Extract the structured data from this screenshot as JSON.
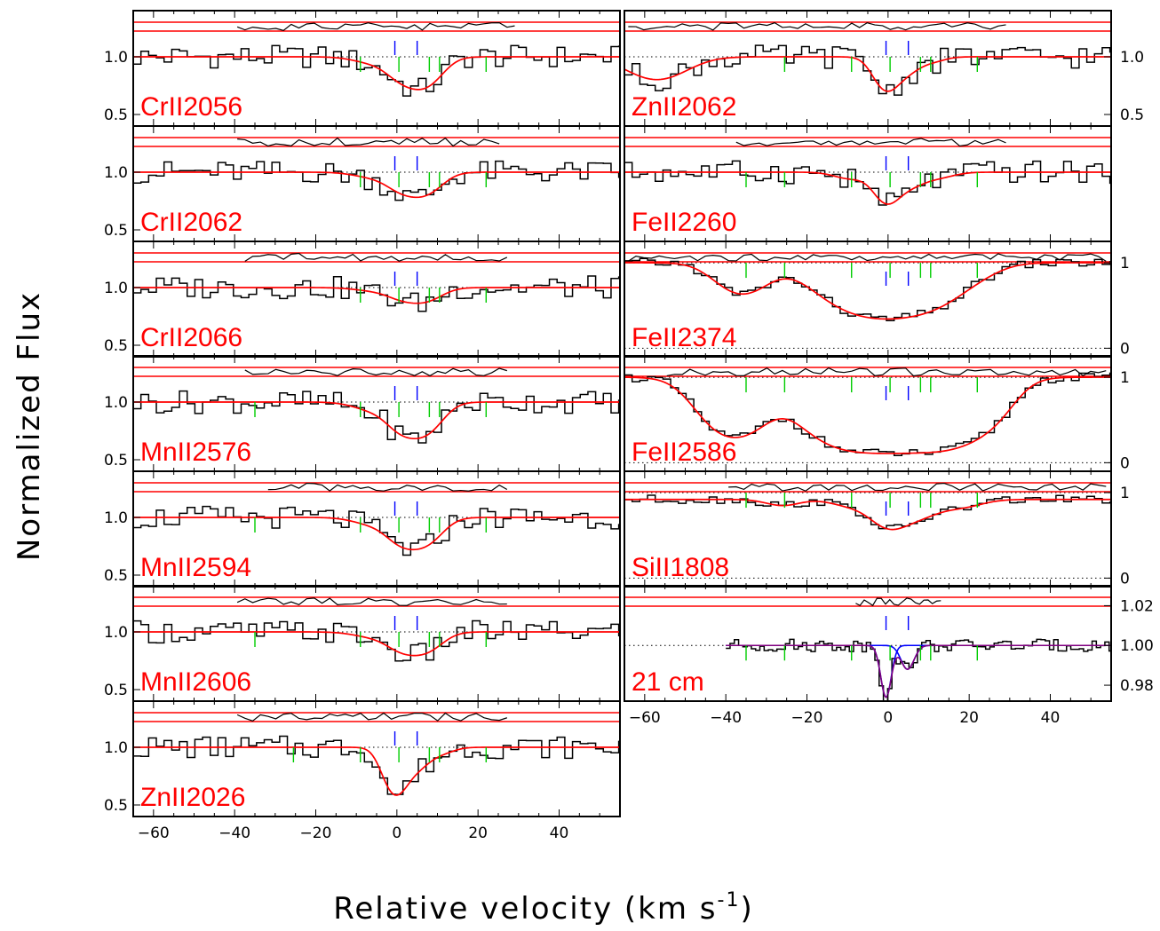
{
  "figure": {
    "xlabel": "Relative velocity (km s",
    "xlabel_sup": "-1",
    "xlabel_end": ")",
    "ylabel": "Normalized Flux"
  },
  "colors": {
    "data": "#000000",
    "model": "#ff0000",
    "component_blue": "#0000ff",
    "component_green": "#00cc00",
    "continuum_dotted": "#000000",
    "hi_components": "#0000ff",
    "hi_total": "#800080"
  },
  "chart_data": {
    "type": "line",
    "xlim": [
      -65,
      55
    ],
    "x_ticks": [
      -60,
      -40,
      -20,
      0,
      20,
      40
    ],
    "blue_ticks_velocity": [
      -0.5,
      5
    ],
    "green_ticks_velocity": [
      -35,
      -25.5,
      -9,
      0.5,
      8,
      10.5,
      22
    ],
    "panels": [
      {
        "label": "CrII2056",
        "ylim": [
          0.4,
          1.4
        ],
        "y_ticks": [
          0.5,
          1.0
        ],
        "y_tick_labels": [
          "0.5",
          "1.0"
        ],
        "green_ticks": [
          -9,
          0.5,
          8,
          10.5,
          22
        ],
        "model": {
          "continuum": 1.0,
          "components": [
            {
              "v": -5,
              "depth": 0.06,
              "sigma": 5
            },
            {
              "v": 1,
              "depth": 0.15,
              "sigma": 3.5
            },
            {
              "v": 7,
              "depth": 0.28,
              "sigma": 4
            }
          ]
        },
        "residual_range": [
          -40,
          30
        ]
      },
      {
        "label": "CrII2062",
        "ylim": [
          0.4,
          1.4
        ],
        "y_ticks": [
          0.5,
          1.0
        ],
        "y_tick_labels": [
          "0.5",
          "1.0"
        ],
        "green_ticks": [
          -9,
          0.5,
          8,
          10.5,
          22
        ],
        "model": {
          "continuum": 1.0,
          "components": [
            {
              "v": -5,
              "depth": 0.05,
              "sigma": 5
            },
            {
              "v": 1,
              "depth": 0.12,
              "sigma": 3.5
            },
            {
              "v": 7,
              "depth": 0.2,
              "sigma": 4
            }
          ]
        },
        "residual_range": [
          -40,
          26
        ]
      },
      {
        "label": "CrII2066",
        "ylim": [
          0.4,
          1.4
        ],
        "y_ticks": [
          0.5,
          1.0
        ],
        "y_tick_labels": [
          "0.5",
          "1.0"
        ],
        "green_ticks": [
          -9,
          0.5,
          8,
          10.5,
          22
        ],
        "model": {
          "continuum": 1.0,
          "components": [
            {
              "v": -5,
              "depth": 0.03,
              "sigma": 5
            },
            {
              "v": 1,
              "depth": 0.07,
              "sigma": 3.5
            },
            {
              "v": 7,
              "depth": 0.12,
              "sigma": 4
            }
          ]
        },
        "residual_range": [
          -38,
          28
        ]
      },
      {
        "label": "MnII2576",
        "ylim": [
          0.4,
          1.4
        ],
        "y_ticks": [
          0.5,
          1.0
        ],
        "y_tick_labels": [
          "0.5",
          "1.0"
        ],
        "green_ticks": [
          -35,
          -9,
          0.5,
          8,
          10.5,
          22
        ],
        "model": {
          "continuum": 1.0,
          "components": [
            {
              "v": -5,
              "depth": 0.08,
              "sigma": 5
            },
            {
              "v": 1,
              "depth": 0.2,
              "sigma": 3.5
            },
            {
              "v": 7,
              "depth": 0.3,
              "sigma": 4
            }
          ]
        },
        "residual_range": [
          -38,
          28
        ]
      },
      {
        "label": "MnII2594",
        "ylim": [
          0.4,
          1.4
        ],
        "y_ticks": [
          0.5,
          1.0
        ],
        "y_tick_labels": [
          "0.5",
          "1.0"
        ],
        "green_ticks": [
          -35,
          -9,
          0.5,
          8,
          10.5,
          22
        ],
        "model": {
          "continuum": 1.0,
          "components": [
            {
              "v": -5,
              "depth": 0.07,
              "sigma": 5
            },
            {
              "v": 1,
              "depth": 0.18,
              "sigma": 3.5
            },
            {
              "v": 7,
              "depth": 0.25,
              "sigma": 4
            }
          ]
        },
        "residual_range": [
          -32,
          28
        ]
      },
      {
        "label": "MnII2606",
        "ylim": [
          0.4,
          1.4
        ],
        "y_ticks": [
          0.5,
          1.0
        ],
        "y_tick_labels": [
          "0.5",
          "1.0"
        ],
        "green_ticks": [
          -35,
          -9,
          0.5,
          8,
          10.5,
          22
        ],
        "model": {
          "continuum": 1.0,
          "components": [
            {
              "v": -5,
              "depth": 0.05,
              "sigma": 5
            },
            {
              "v": 1,
              "depth": 0.12,
              "sigma": 3.5
            },
            {
              "v": 7,
              "depth": 0.18,
              "sigma": 4
            }
          ]
        },
        "residual_range": [
          -40,
          28
        ]
      },
      {
        "label": "ZnII2026",
        "ylim": [
          0.4,
          1.4
        ],
        "y_ticks": [
          0.5,
          1.0
        ],
        "y_tick_labels": [
          "0.5",
          "1.0"
        ],
        "green_ticks": [
          -25.5,
          -9,
          0.5,
          8,
          10.5,
          22
        ],
        "model": {
          "continuum": 1.0,
          "components": [
            {
              "v": -0.5,
              "depth": 0.5,
              "sigma": 2.8
            },
            {
              "v": 5,
              "depth": 0.18,
              "sigma": 3
            },
            {
              "v": 11,
              "depth": 0.05,
              "sigma": 3
            }
          ]
        },
        "residual_range": [
          -40,
          28
        ]
      },
      {
        "label": "ZnII2062",
        "ylim": [
          0.4,
          1.4
        ],
        "y_ticks": [
          0.5,
          1.0
        ],
        "y_tick_labels": [
          "0.5",
          "1.0"
        ],
        "green_ticks": [
          -25.5,
          -9,
          0.5,
          8,
          10.5,
          22
        ],
        "model": {
          "continuum": 1.0,
          "components": [
            {
              "v": -57,
              "depth": 0.22,
              "sigma": 7
            },
            {
              "v": -0.5,
              "depth": 0.33,
              "sigma": 3
            },
            {
              "v": 5,
              "depth": 0.12,
              "sigma": 3
            },
            {
              "v": 11,
              "depth": 0.04,
              "sigma": 3
            }
          ]
        },
        "residual_range": [
          -65,
          30
        ]
      },
      {
        "label": "FeII2260",
        "ylim": [
          0.4,
          1.4
        ],
        "y_ticks": [],
        "y_tick_labels": [],
        "green_ticks": [
          -35,
          -25.5,
          -9,
          0.5,
          8,
          10.5,
          22
        ],
        "model": {
          "continuum": 1.0,
          "components": [
            {
              "v": -9,
              "depth": 0.06,
              "sigma": 4
            },
            {
              "v": -0.5,
              "depth": 0.28,
              "sigma": 3
            },
            {
              "v": 5,
              "depth": 0.12,
              "sigma": 3.5
            },
            {
              "v": 12,
              "depth": 0.05,
              "sigma": 4
            }
          ]
        },
        "residual_range": [
          -38,
          30
        ]
      },
      {
        "label": "FeII2374",
        "ylim": [
          -0.1,
          1.25
        ],
        "y_ticks": [
          0,
          1
        ],
        "y_tick_labels": [
          "0",
          "1"
        ],
        "green_ticks": [
          -35,
          -25.5,
          -9,
          0.5,
          8,
          10.5,
          22
        ],
        "model": {
          "continuum": 1.0,
          "components": [
            {
              "v": -36,
              "depth": 0.45,
              "sigma": 6
            },
            {
              "v": -12,
              "depth": 0.4,
              "sigma": 8
            },
            {
              "v": 0,
              "depth": 0.85,
              "sigma": 9
            },
            {
              "v": 12,
              "depth": 0.4,
              "sigma": 7
            },
            {
              "v": 22,
              "depth": 0.1,
              "sigma": 6
            }
          ]
        },
        "residual_range": [
          -65,
          55
        ]
      },
      {
        "label": "FeII2586",
        "ylim": [
          -0.1,
          1.25
        ],
        "y_ticks": [
          0,
          1
        ],
        "y_tick_labels": [
          "0",
          "1"
        ],
        "green_ticks": [
          -35,
          -25.5,
          -9,
          0.5,
          8,
          10.5,
          22
        ],
        "model": {
          "continuum": 1.0,
          "components": [
            {
              "v": -38,
              "depth": 1.2,
              "sigma": 7
            },
            {
              "v": -12,
              "depth": 1.2,
              "sigma": 9
            },
            {
              "v": 2,
              "depth": 1.6,
              "sigma": 10
            },
            {
              "v": 16,
              "depth": 1.2,
              "sigma": 8
            },
            {
              "v": 26,
              "depth": 0.25,
              "sigma": 5
            }
          ]
        },
        "residual_range": [
          -55,
          55
        ]
      },
      {
        "label": "SiII1808",
        "ylim": [
          -0.1,
          1.25
        ],
        "y_ticks": [
          0,
          1
        ],
        "y_tick_labels": [
          "0",
          "1"
        ],
        "green_ticks": [
          -35,
          -25.5,
          -9,
          0.5,
          8,
          10.5,
          22
        ],
        "model": {
          "continuum": 0.92,
          "components": [
            {
              "v": -26,
              "depth": 0.08,
              "sigma": 4
            },
            {
              "v": -8,
              "depth": 0.1,
              "sigma": 5
            },
            {
              "v": 0,
              "depth": 0.35,
              "sigma": 4
            },
            {
              "v": 7,
              "depth": 0.25,
              "sigma": 5
            },
            {
              "v": 18,
              "depth": 0.1,
              "sigma": 5
            }
          ]
        },
        "residual_range": [
          -40,
          55
        ]
      },
      {
        "label": "21 cm",
        "ylim": [
          0.972,
          1.03
        ],
        "y_ticks": [
          0.98,
          1.0,
          1.02
        ],
        "y_tick_labels": [
          "0.98",
          "1.00",
          "1.02"
        ],
        "green_ticks": [
          -35,
          -25.5,
          -9,
          0.5,
          8,
          10.5,
          22
        ],
        "model": {
          "continuum": 1.0,
          "components": [
            {
              "v": -0.5,
              "depth": 0.026,
              "sigma": 1.3
            },
            {
              "v": 4.8,
              "depth": 0.012,
              "sigma": 1.6
            }
          ]
        },
        "hi_fit_range": [
          -40,
          55
        ],
        "residual_range": [
          -9,
          14
        ]
      }
    ]
  }
}
